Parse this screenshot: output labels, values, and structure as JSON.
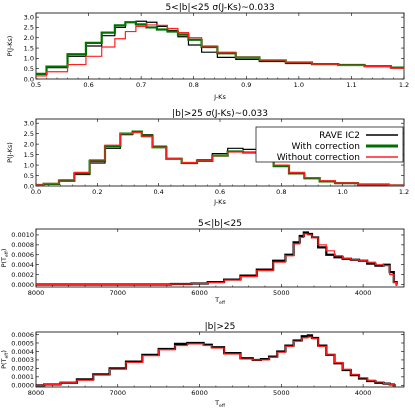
{
  "chart_data": [
    {
      "type": "line",
      "title": "5<|b|<25 σ(J-Ks)~0.033",
      "xlabel": "J-Ks",
      "ylabel": "P(J-Ks)",
      "xlim": [
        0.5,
        1.2
      ],
      "ylim": [
        0,
        3.2
      ],
      "xticks": [
        "0.5",
        "0.6",
        "0.7",
        "0.8",
        "0.9",
        "1.0",
        "1.1",
        "1.2"
      ],
      "yticks": [
        "0.0",
        "0.5",
        "1.0",
        "1.5",
        "2.0",
        "2.5",
        "3.0"
      ],
      "series": [
        {
          "color": "#000000",
          "x": [
            0.5,
            0.54,
            0.58,
            0.61,
            0.64,
            0.66,
            0.68,
            0.7,
            0.72,
            0.74,
            0.76,
            0.78,
            0.8,
            0.83,
            0.86,
            0.9,
            0.95,
            1.0,
            1.05,
            1.1,
            1.15,
            1.2
          ],
          "y": [
            0.25,
            0.55,
            1.1,
            1.6,
            2.1,
            2.5,
            2.75,
            2.8,
            2.75,
            2.55,
            2.35,
            2.05,
            1.65,
            1.3,
            1.05,
            0.95,
            0.85,
            0.75,
            0.72,
            0.68,
            0.62,
            0.55
          ]
        },
        {
          "color": "#007000",
          "x": [
            0.5,
            0.54,
            0.58,
            0.61,
            0.64,
            0.66,
            0.68,
            0.7,
            0.72,
            0.74,
            0.76,
            0.78,
            0.8,
            0.83,
            0.86,
            0.9,
            0.95,
            1.0,
            1.05,
            1.1,
            1.15,
            1.2
          ],
          "y": [
            0.25,
            0.6,
            1.2,
            1.75,
            2.25,
            2.6,
            2.75,
            2.65,
            2.5,
            2.4,
            2.3,
            2.15,
            1.9,
            1.55,
            1.25,
            1.05,
            0.9,
            0.8,
            0.72,
            0.68,
            0.62,
            0.55
          ]
        },
        {
          "color": "#ff2020",
          "x": [
            0.5,
            0.54,
            0.58,
            0.61,
            0.64,
            0.66,
            0.68,
            0.7,
            0.72,
            0.74,
            0.76,
            0.78,
            0.8,
            0.83,
            0.86,
            0.9,
            0.95,
            1.0,
            1.05,
            1.1,
            1.15,
            1.2
          ],
          "y": [
            0.15,
            0.35,
            0.7,
            1.1,
            1.55,
            1.95,
            2.3,
            2.55,
            2.62,
            2.6,
            2.45,
            2.25,
            2.0,
            1.6,
            1.3,
            1.05,
            0.92,
            0.82,
            0.72,
            0.66,
            0.6,
            0.52
          ]
        }
      ]
    },
    {
      "type": "line",
      "title": "|b|>25 σ(J-Ks)~0.033",
      "xlabel": "J-Ks",
      "ylabel": "P(J-Ks)",
      "xlim": [
        0.0,
        1.2
      ],
      "ylim": [
        0,
        3.2
      ],
      "xticks": [
        "0.0",
        "0.2",
        "0.4",
        "0.6",
        "0.8",
        "1.0",
        "1.2"
      ],
      "yticks": [
        "0.0",
        "0.5",
        "1.0",
        "1.5",
        "2.0",
        "2.5",
        "3.0"
      ],
      "legend": {
        "position": "top-right",
        "entries": [
          "RAVE IC2",
          "With correction",
          "Without correction"
        ]
      },
      "series": [
        {
          "name": "RAVE IC2",
          "color": "#000000",
          "x": [
            0.0,
            0.05,
            0.1,
            0.15,
            0.2,
            0.25,
            0.3,
            0.33,
            0.36,
            0.4,
            0.45,
            0.5,
            0.55,
            0.6,
            0.65,
            0.7,
            0.75,
            0.8,
            0.85,
            0.9,
            0.95,
            1.0,
            1.1,
            1.2
          ],
          "y": [
            0.05,
            0.1,
            0.25,
            0.55,
            1.1,
            1.8,
            2.45,
            2.6,
            2.45,
            1.9,
            1.3,
            1.1,
            1.25,
            1.55,
            1.8,
            1.75,
            1.45,
            1.0,
            0.6,
            0.35,
            0.2,
            0.12,
            0.06,
            0.03
          ]
        },
        {
          "name": "With correction",
          "color": "#007000",
          "x": [
            0.0,
            0.05,
            0.1,
            0.15,
            0.2,
            0.25,
            0.3,
            0.33,
            0.36,
            0.4,
            0.45,
            0.5,
            0.55,
            0.6,
            0.65,
            0.7,
            0.75,
            0.8,
            0.85,
            0.9,
            0.95,
            1.0,
            1.1,
            1.2
          ],
          "y": [
            0.05,
            0.1,
            0.25,
            0.6,
            1.2,
            1.9,
            2.5,
            2.6,
            2.4,
            1.85,
            1.3,
            1.1,
            1.2,
            1.45,
            1.65,
            1.6,
            1.35,
            0.95,
            0.6,
            0.38,
            0.22,
            0.14,
            0.07,
            0.03
          ]
        },
        {
          "name": "Without correction",
          "color": "#ff2020",
          "x": [
            0.0,
            0.05,
            0.1,
            0.15,
            0.2,
            0.25,
            0.3,
            0.33,
            0.36,
            0.4,
            0.45,
            0.5,
            0.55,
            0.6,
            0.65,
            0.7,
            0.75,
            0.8,
            0.85,
            0.9,
            0.95,
            1.0,
            1.1,
            1.2
          ],
          "y": [
            0.05,
            0.12,
            0.3,
            0.65,
            1.25,
            1.95,
            2.5,
            2.55,
            2.35,
            1.85,
            1.3,
            1.12,
            1.2,
            1.45,
            1.62,
            1.6,
            1.38,
            1.0,
            0.65,
            0.4,
            0.25,
            0.15,
            0.08,
            0.04
          ]
        }
      ]
    },
    {
      "type": "line",
      "title": "5<|b|<25",
      "xlabel": "T_eff",
      "ylabel": "P(T_eff)",
      "xlim": [
        8000,
        3500
      ],
      "ylim": [
        -5e-05,
        0.00112
      ],
      "xticks": [
        "8000",
        "7000",
        "6000",
        "5000",
        "4000"
      ],
      "yticks": [
        "0.0000",
        "0.0002",
        "0.0004",
        "0.0006",
        "0.0008",
        "0.0010"
      ],
      "series": [
        {
          "color": "#000000",
          "x": [
            8000,
            7500,
            7000,
            6500,
            6200,
            6000,
            5800,
            5600,
            5400,
            5200,
            5000,
            4900,
            4800,
            4750,
            4700,
            4650,
            4600,
            4500,
            4400,
            4300,
            4200,
            4100,
            4000,
            3900,
            3800,
            3700,
            3650,
            3600,
            3580
          ],
          "y": [
            0.0,
            0.0,
            0.0,
            0.0,
            1e-05,
            2e-05,
            5e-05,
            0.0001,
            0.00018,
            0.0003,
            0.00048,
            0.0006,
            0.00085,
            0.00098,
            0.00105,
            0.00102,
            0.00095,
            0.00075,
            0.0006,
            0.00055,
            0.00052,
            0.0005,
            0.00048,
            0.00042,
            0.00038,
            0.0004,
            0.00025,
            5e-05,
            0.0
          ]
        },
        {
          "color": "#ff2020",
          "x": [
            8000,
            7500,
            7000,
            6500,
            6200,
            6000,
            5800,
            5600,
            5400,
            5200,
            5000,
            4900,
            4800,
            4750,
            4700,
            4650,
            4600,
            4500,
            4400,
            4300,
            4200,
            4100,
            4000,
            3900,
            3800,
            3700,
            3650,
            3600,
            3580
          ],
          "y": [
            0.0,
            0.0,
            0.0,
            0.0,
            1e-05,
            2e-05,
            4e-05,
            9e-05,
            0.00016,
            0.00028,
            0.00045,
            0.00058,
            0.00082,
            0.00095,
            0.00102,
            0.001,
            0.00094,
            0.0008,
            0.00068,
            0.00058,
            0.00053,
            0.0005,
            0.00048,
            0.00045,
            0.0004,
            0.00038,
            0.0002,
            4e-05,
            0.0
          ]
        }
      ]
    },
    {
      "type": "line",
      "title": "|b|>25",
      "xlabel": "T_eff",
      "ylabel": "P(T_eff)",
      "xlim": [
        8000,
        3500
      ],
      "ylim": [
        -2e-05,
        0.00063
      ],
      "xticks": [
        "8000",
        "7000",
        "6000",
        "5000",
        "4000"
      ],
      "yticks": [
        "0.0000",
        "0.0001",
        "0.0002",
        "0.0003",
        "0.0004",
        "0.0005",
        "0.0006"
      ],
      "series": [
        {
          "color": "#000000",
          "x": [
            8000,
            7800,
            7600,
            7400,
            7200,
            7000,
            6800,
            6600,
            6400,
            6200,
            6100,
            6000,
            5900,
            5800,
            5600,
            5400,
            5300,
            5200,
            5100,
            5000,
            4900,
            4800,
            4700,
            4650,
            4600,
            4500,
            4400,
            4300,
            4200,
            4100,
            4000,
            3900,
            3800,
            3700,
            3650,
            3600
          ],
          "y": [
            0.0,
            1e-05,
            3e-05,
            7e-05,
            0.00013,
            0.0002,
            0.00028,
            0.00036,
            0.00043,
            0.00049,
            0.0005,
            0.0005,
            0.00048,
            0.00045,
            0.00038,
            0.00032,
            0.0003,
            0.00031,
            0.00034,
            0.0004,
            0.00047,
            0.00053,
            0.00058,
            0.00059,
            0.00056,
            0.00047,
            0.00036,
            0.00026,
            0.00018,
            0.00012,
            8e-05,
            5e-05,
            3e-05,
            2e-05,
            1e-05,
            0.0
          ]
        },
        {
          "color": "#ff2020",
          "x": [
            8000,
            7800,
            7600,
            7400,
            7200,
            7000,
            6800,
            6600,
            6400,
            6200,
            6100,
            6000,
            5900,
            5800,
            5600,
            5400,
            5300,
            5200,
            5100,
            5000,
            4900,
            4800,
            4700,
            4650,
            4600,
            4500,
            4400,
            4300,
            4200,
            4100,
            4000,
            3900,
            3800,
            3700,
            3650,
            3600
          ],
          "y": [
            0.0,
            1e-05,
            3e-05,
            6e-05,
            0.00012,
            0.00019,
            0.00027,
            0.00035,
            0.00042,
            0.00047,
            0.00049,
            0.00049,
            0.00047,
            0.00044,
            0.00037,
            0.00031,
            0.0003,
            0.0003,
            0.00033,
            0.00039,
            0.00046,
            0.00052,
            0.00056,
            0.00057,
            0.00055,
            0.00046,
            0.00036,
            0.00027,
            0.00019,
            0.00013,
            9e-05,
            6e-05,
            4e-05,
            2e-05,
            1e-05,
            0.0
          ]
        }
      ]
    }
  ]
}
